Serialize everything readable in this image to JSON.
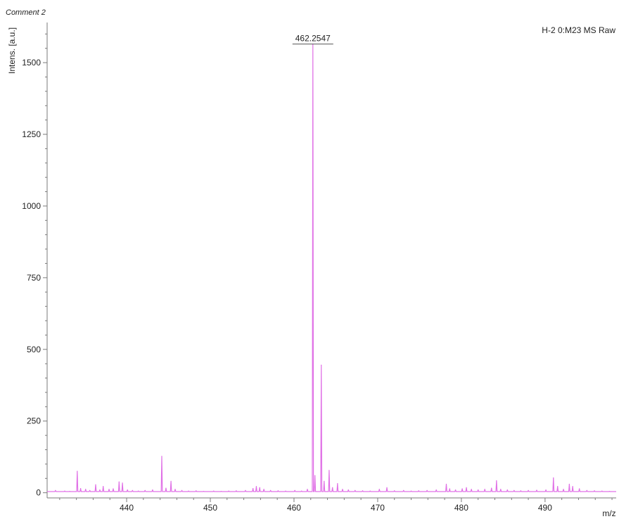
{
  "chart_data": {
    "type": "line",
    "comment": "Comment 2",
    "spectrum_label": "H-2 0:M23 MS Raw",
    "xlabel": "m/z",
    "ylabel": "Intens. [a.u.]",
    "xlim": [
      430.5,
      498.5
    ],
    "ylim": [
      -18,
      1640
    ],
    "x_ticks": [
      440,
      450,
      460,
      470,
      480,
      490
    ],
    "y_ticks": [
      0,
      250,
      500,
      750,
      1000,
      1250,
      1500
    ],
    "x_minor_step": 2,
    "y_minor_step": 50,
    "peak_label": {
      "text": "462.2547",
      "x": 462.2547,
      "y": 1565
    },
    "line_color": "#e070e6",
    "axis_color": "#7a7a7a",
    "series": [
      {
        "peaks": [
          [
            431.5,
            8
          ],
          [
            432.6,
            6
          ],
          [
            433.2,
            5
          ],
          [
            434.1,
            75
          ],
          [
            434.5,
            15
          ],
          [
            435.1,
            12
          ],
          [
            435.6,
            8
          ],
          [
            436.3,
            28
          ],
          [
            436.8,
            10
          ],
          [
            437.2,
            22
          ],
          [
            437.9,
            12
          ],
          [
            438.4,
            14
          ],
          [
            439.1,
            38
          ],
          [
            439.5,
            34
          ],
          [
            440.1,
            10
          ],
          [
            440.7,
            8
          ],
          [
            441.4,
            6
          ],
          [
            442.2,
            8
          ],
          [
            443.1,
            10
          ],
          [
            444.2,
            127
          ],
          [
            444.7,
            16
          ],
          [
            445.3,
            40
          ],
          [
            445.8,
            12
          ],
          [
            446.6,
            8
          ],
          [
            447.4,
            6
          ],
          [
            448.3,
            7
          ],
          [
            449.2,
            5
          ],
          [
            450.4,
            6
          ],
          [
            451.3,
            5
          ],
          [
            452.2,
            6
          ],
          [
            453.1,
            7
          ],
          [
            454.2,
            8
          ],
          [
            455.1,
            15
          ],
          [
            455.5,
            22
          ],
          [
            455.9,
            18
          ],
          [
            456.4,
            12
          ],
          [
            457.2,
            8
          ],
          [
            458.1,
            7
          ],
          [
            459.0,
            6
          ],
          [
            460.1,
            8
          ],
          [
            460.9,
            6
          ],
          [
            461.6,
            12
          ],
          [
            462.2547,
            1565
          ],
          [
            462.5,
            60
          ],
          [
            463.26,
            445
          ],
          [
            463.6,
            40
          ],
          [
            464.2,
            78
          ],
          [
            464.6,
            18
          ],
          [
            465.2,
            32
          ],
          [
            465.8,
            12
          ],
          [
            466.5,
            10
          ],
          [
            467.3,
            8
          ],
          [
            468.2,
            7
          ],
          [
            469.1,
            6
          ],
          [
            470.2,
            12
          ],
          [
            471.1,
            18
          ],
          [
            472.0,
            7
          ],
          [
            473.1,
            8
          ],
          [
            474.0,
            6
          ],
          [
            474.9,
            7
          ],
          [
            475.9,
            8
          ],
          [
            477.0,
            10
          ],
          [
            478.2,
            30
          ],
          [
            478.6,
            14
          ],
          [
            479.3,
            10
          ],
          [
            480.1,
            14
          ],
          [
            480.6,
            18
          ],
          [
            481.2,
            12
          ],
          [
            482.0,
            10
          ],
          [
            482.8,
            12
          ],
          [
            483.6,
            16
          ],
          [
            484.2,
            42
          ],
          [
            484.7,
            12
          ],
          [
            485.5,
            10
          ],
          [
            486.3,
            8
          ],
          [
            487.1,
            7
          ],
          [
            488.0,
            8
          ],
          [
            489.0,
            9
          ],
          [
            490.1,
            10
          ],
          [
            491.0,
            52
          ],
          [
            491.5,
            22
          ],
          [
            492.2,
            12
          ],
          [
            492.9,
            30
          ],
          [
            493.3,
            22
          ],
          [
            494.1,
            14
          ],
          [
            495.0,
            8
          ],
          [
            495.9,
            7
          ],
          [
            496.8,
            6
          ],
          [
            497.7,
            5
          ]
        ],
        "baseline": 4
      }
    ]
  }
}
